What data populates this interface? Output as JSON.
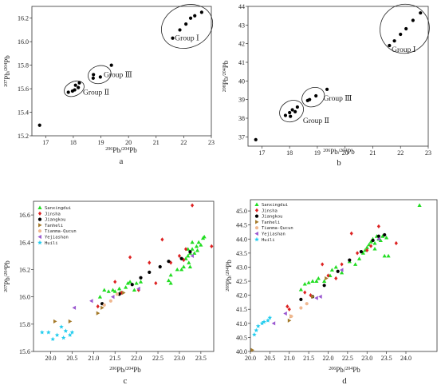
{
  "chart_data": [
    {
      "id": "a",
      "type": "scatter",
      "panel_label": "a",
      "xlabel": "206Pb/204Pb",
      "ylabel": "207Pb/204Pb",
      "xlim": [
        16.5,
        23.0
      ],
      "ylim": [
        15.2,
        16.3
      ],
      "xticks": [
        "17",
        "18",
        "19",
        "20",
        "21",
        "22",
        "23"
      ],
      "yticks": [
        "15.2",
        "15.4",
        "15.6",
        "15.8",
        "16.0",
        "16.2"
      ],
      "marker_color": "#000000",
      "series": [
        {
          "points": [
            [
              16.78,
              15.29
            ],
            [
              17.82,
              15.57
            ],
            [
              17.97,
              15.58
            ],
            [
              18.05,
              15.59
            ],
            [
              18.08,
              15.63
            ],
            [
              18.18,
              15.61
            ],
            [
              18.22,
              15.65
            ],
            [
              18.72,
              15.69
            ],
            [
              18.73,
              15.72
            ],
            [
              18.98,
              15.7
            ],
            [
              19.38,
              15.8
            ],
            [
              21.6,
              16.03
            ],
            [
              21.86,
              16.1
            ],
            [
              22.08,
              16.15
            ],
            [
              22.25,
              16.2
            ],
            [
              22.4,
              16.22
            ],
            [
              22.65,
              16.25
            ]
          ]
        }
      ],
      "annotations": [
        {
          "text": "Group Ⅰ",
          "x": 21.68,
          "y": 16.01
        },
        {
          "text": "Group Ⅲ",
          "x": 19.1,
          "y": 15.7
        },
        {
          "text": "Group Ⅱ",
          "x": 18.35,
          "y": 15.55
        }
      ]
    },
    {
      "id": "b",
      "type": "scatter",
      "panel_label": "b",
      "xlabel": "206Pb/204Pb",
      "ylabel": "208Pb/204Pb",
      "xlim": [
        16.5,
        23.0
      ],
      "ylim": [
        36.5,
        44.0
      ],
      "xticks": [
        "17",
        "18",
        "19",
        "20",
        "21",
        "22",
        "23"
      ],
      "yticks": [
        "37",
        "38",
        "39",
        "40",
        "41",
        "42",
        "43",
        "44"
      ],
      "marker_color": "#000000",
      "series": [
        {
          "points": [
            [
              16.78,
              36.85
            ],
            [
              17.85,
              38.15
            ],
            [
              18.0,
              38.3
            ],
            [
              18.03,
              38.1
            ],
            [
              18.1,
              38.45
            ],
            [
              18.2,
              38.35
            ],
            [
              18.28,
              38.6
            ],
            [
              18.65,
              38.95
            ],
            [
              18.72,
              39.0
            ],
            [
              18.95,
              39.2
            ],
            [
              19.35,
              39.55
            ],
            [
              21.6,
              41.9
            ],
            [
              21.78,
              42.15
            ],
            [
              22.0,
              42.5
            ],
            [
              22.2,
              42.8
            ],
            [
              22.45,
              43.25
            ],
            [
              22.72,
              43.65
            ]
          ]
        }
      ],
      "annotations": [
        {
          "text": "Group Ⅰ",
          "x": 21.68,
          "y": 41.55
        },
        {
          "text": "Group Ⅲ",
          "x": 19.22,
          "y": 38.95
        },
        {
          "text": "Group Ⅱ",
          "x": 18.48,
          "y": 37.75
        }
      ]
    },
    {
      "id": "c",
      "type": "scatter",
      "panel_label": "c",
      "xlabel": "206Pb/204Pb",
      "ylabel": "207Pb/204Pb",
      "xlim": [
        19.6,
        23.8
      ],
      "ylim": [
        15.6,
        16.7
      ],
      "xticks": [
        "20.0",
        "20.5",
        "21.0",
        "21.5",
        "22.0",
        "22.5",
        "23.0",
        "23.5"
      ],
      "yticks": [
        "15.6",
        "15.8",
        "16.0",
        "16.2",
        "16.4",
        "16.6"
      ],
      "series": [
        {
          "name": "Sanxingdui",
          "marker": "triangle",
          "color": "#22dd22",
          "points": [
            [
              21.15,
              16.0
            ],
            [
              21.25,
              16.05
            ],
            [
              21.35,
              16.04
            ],
            [
              21.45,
              16.05
            ],
            [
              21.5,
              16.04
            ],
            [
              21.6,
              16.06
            ],
            [
              21.62,
              16.03
            ],
            [
              21.75,
              16.07
            ],
            [
              21.85,
              16.11
            ],
            [
              21.95,
              16.05
            ],
            [
              21.8,
              16.1
            ],
            [
              22.0,
              16.1
            ],
            [
              22.1,
              16.11
            ],
            [
              22.75,
              16.12
            ],
            [
              22.8,
              16.16
            ],
            [
              22.8,
              16.1
            ],
            [
              22.95,
              16.2
            ],
            [
              23.05,
              16.2
            ],
            [
              23.1,
              16.22
            ],
            [
              23.15,
              16.28
            ],
            [
              23.2,
              16.3
            ],
            [
              23.22,
              16.25
            ],
            [
              23.25,
              16.32
            ],
            [
              23.3,
              16.35
            ],
            [
              23.35,
              16.32
            ],
            [
              23.4,
              16.37
            ],
            [
              23.42,
              16.34
            ],
            [
              23.45,
              16.4
            ],
            [
              23.5,
              16.38
            ],
            [
              23.55,
              16.43
            ],
            [
              23.58,
              16.44
            ],
            [
              23.3,
              16.4
            ],
            [
              23.25,
              16.22
            ],
            [
              23.2,
              16.35
            ]
          ]
        },
        {
          "name": "Jinsha",
          "marker": "diamond",
          "color": "#dd2222",
          "points": [
            [
              21.1,
              15.93
            ],
            [
              21.5,
              16.11
            ],
            [
              21.65,
              16.03
            ],
            [
              21.85,
              16.29
            ],
            [
              22.05,
              16.05
            ],
            [
              22.3,
              16.25
            ],
            [
              22.45,
              16.1
            ],
            [
              22.6,
              16.42
            ],
            [
              22.8,
              16.25
            ],
            [
              23.0,
              16.3
            ],
            [
              23.1,
              16.27
            ],
            [
              23.15,
              16.35
            ],
            [
              23.3,
              16.67
            ],
            [
              23.75,
              16.37
            ]
          ]
        },
        {
          "name": "Jiangkou",
          "marker": "circle",
          "color": "#000000",
          "points": [
            [
              21.2,
              15.95
            ],
            [
              21.6,
              16.02
            ],
            [
              21.9,
              16.09
            ],
            [
              22.1,
              16.14
            ],
            [
              22.3,
              16.18
            ],
            [
              22.55,
              16.22
            ],
            [
              22.75,
              16.26
            ],
            [
              23.05,
              16.28
            ],
            [
              23.25,
              16.33
            ]
          ]
        },
        {
          "name": "Tanheli",
          "marker": "triangle-right",
          "color": "#a57a2a",
          "points": [
            [
              20.1,
              15.82
            ],
            [
              20.45,
              15.82
            ],
            [
              21.1,
              15.88
            ],
            [
              21.2,
              15.92
            ],
            [
              21.7,
              16.03
            ]
          ]
        },
        {
          "name": "Tianma-Qucun",
          "marker": "circle",
          "color": "#f0b890",
          "points": [
            [
              21.25,
              15.94
            ],
            [
              21.4,
              15.97
            ],
            [
              21.55,
              16.02
            ]
          ]
        },
        {
          "name": "Yejiashan",
          "marker": "triangle-left",
          "color": "#9b59d0",
          "points": [
            [
              20.55,
              15.92
            ],
            [
              20.95,
              15.97
            ],
            [
              21.45,
              16.0
            ],
            [
              22.05,
              16.06
            ],
            [
              23.3,
              16.3
            ]
          ]
        },
        {
          "name": "Huili",
          "marker": "star",
          "color": "#22ccee",
          "points": [
            [
              19.8,
              15.74
            ],
            [
              20.05,
              15.69
            ],
            [
              20.15,
              15.72
            ],
            [
              20.25,
              15.78
            ],
            [
              20.3,
              15.7
            ],
            [
              20.35,
              15.75
            ],
            [
              20.45,
              15.72
            ],
            [
              20.5,
              15.74
            ],
            [
              19.95,
              15.74
            ]
          ]
        }
      ],
      "legend": {
        "position": "top-left"
      }
    },
    {
      "id": "d",
      "type": "scatter",
      "panel_label": "d",
      "xlabel": "206Pb/204Pb",
      "ylabel": "208Pb/204Pb",
      "xlim": [
        20.0,
        24.8
      ],
      "ylim": [
        40.0,
        45.4
      ],
      "xticks": [
        "20.0",
        "20.5",
        "21.0",
        "21.5",
        "22.0",
        "22.5",
        "23.0",
        "23.5",
        "24.0"
      ],
      "yticks": [
        "40.0",
        "40.5",
        "41.0",
        "41.5",
        "42.0",
        "42.5",
        "43.0",
        "43.5",
        "44.0",
        "44.5",
        "45.0"
      ],
      "series": [
        {
          "name": "Sanxingdui",
          "marker": "triangle",
          "color": "#22dd22",
          "points": [
            [
              21.3,
              42.2
            ],
            [
              21.4,
              42.4
            ],
            [
              21.5,
              42.45
            ],
            [
              21.6,
              42.5
            ],
            [
              21.7,
              42.5
            ],
            [
              21.75,
              42.6
            ],
            [
              21.9,
              42.5
            ],
            [
              22.05,
              42.7
            ],
            [
              22.1,
              42.9
            ],
            [
              22.2,
              43.0
            ],
            [
              22.35,
              42.8
            ],
            [
              22.55,
              43.2
            ],
            [
              22.7,
              43.1
            ],
            [
              22.8,
              43.3
            ],
            [
              22.9,
              43.5
            ],
            [
              22.95,
              43.6
            ],
            [
              23.0,
              43.7
            ],
            [
              23.05,
              43.8
            ],
            [
              23.1,
              43.9
            ],
            [
              23.15,
              44.0
            ],
            [
              23.2,
              43.85
            ],
            [
              23.25,
              44.1
            ],
            [
              23.3,
              44.0
            ],
            [
              23.35,
              43.95
            ],
            [
              23.4,
              44.1
            ],
            [
              23.5,
              44.05
            ],
            [
              23.45,
              43.4
            ],
            [
              23.55,
              43.4
            ],
            [
              23.2,
              43.65
            ],
            [
              24.35,
              45.2
            ]
          ]
        },
        {
          "name": "Jinsha",
          "marker": "diamond",
          "color": "#dd2222",
          "points": [
            [
              20.95,
              41.6
            ],
            [
              21.0,
              41.5
            ],
            [
              21.4,
              42.1
            ],
            [
              21.55,
              42.0
            ],
            [
              21.85,
              43.1
            ],
            [
              22.0,
              42.7
            ],
            [
              22.2,
              42.6
            ],
            [
              22.35,
              43.1
            ],
            [
              22.6,
              44.2
            ],
            [
              22.75,
              43.5
            ],
            [
              23.0,
              43.6
            ],
            [
              23.1,
              43.75
            ],
            [
              23.3,
              44.45
            ],
            [
              23.75,
              43.85
            ]
          ]
        },
        {
          "name": "Jiangkou",
          "marker": "circle",
          "color": "#000000",
          "points": [
            [
              21.3,
              41.85
            ],
            [
              21.6,
              41.95
            ],
            [
              21.9,
              42.35
            ],
            [
              22.25,
              42.85
            ],
            [
              22.55,
              43.25
            ],
            [
              22.85,
              43.55
            ],
            [
              23.15,
              43.95
            ],
            [
              23.3,
              44.1
            ],
            [
              23.45,
              44.15
            ]
          ]
        },
        {
          "name": "Tanheli",
          "marker": "triangle-right",
          "color": "#a57a2a",
          "points": [
            [
              20.05,
              40.05
            ],
            [
              21.0,
              41.1
            ],
            [
              21.05,
              41.25
            ],
            [
              21.6,
              41.95
            ],
            [
              21.95,
              42.6
            ]
          ]
        },
        {
          "name": "Tianma-Qucun",
          "marker": "circle",
          "color": "#f0b890",
          "points": [
            [
              21.05,
              41.25
            ],
            [
              21.3,
              41.55
            ],
            [
              21.45,
              41.7
            ]
          ]
        },
        {
          "name": "Yejiashan",
          "marker": "triangle-left",
          "color": "#9b59d0",
          "points": [
            [
              20.6,
              41.0
            ],
            [
              20.9,
              41.35
            ],
            [
              21.7,
              41.9
            ],
            [
              21.8,
              41.95
            ],
            [
              22.35,
              42.9
            ],
            [
              23.3,
              44.0
            ]
          ]
        },
        {
          "name": "Huili",
          "marker": "star",
          "color": "#22ccee",
          "points": [
            [
              20.1,
              40.6
            ],
            [
              20.2,
              40.9
            ],
            [
              20.3,
              41.0
            ],
            [
              20.35,
              41.05
            ],
            [
              20.45,
              41.1
            ],
            [
              20.5,
              41.2
            ],
            [
              20.15,
              40.75
            ]
          ]
        }
      ],
      "legend": {
        "position": "top-left"
      }
    }
  ]
}
